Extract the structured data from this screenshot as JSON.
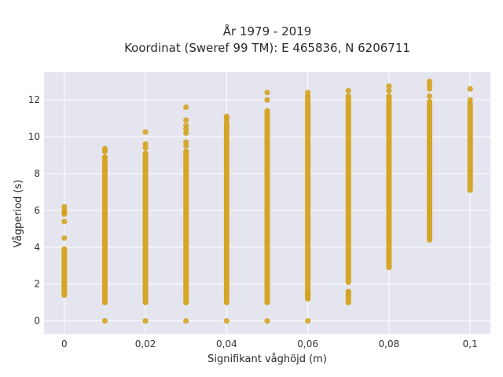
{
  "chart_data": {
    "type": "scatter",
    "title_line1": "År 1979 - 2019",
    "title_line2": "Koordinat (Sweref 99 TM): E 465836, N 6206711",
    "xlabel": "Signifikant våghöjd (m)",
    "ylabel": "Vågperiod (s)",
    "xlim": [
      -0.005,
      0.105
    ],
    "ylim": [
      -0.7,
      13.5
    ],
    "x_ticks": [
      {
        "value": 0,
        "label": "0"
      },
      {
        "value": 0.02,
        "label": "0,02"
      },
      {
        "value": 0.04,
        "label": "0,04"
      },
      {
        "value": 0.06,
        "label": "0,06"
      },
      {
        "value": 0.08,
        "label": "0,08"
      },
      {
        "value": 0.1,
        "label": "0,1"
      }
    ],
    "y_ticks": [
      {
        "value": 0,
        "label": "0"
      },
      {
        "value": 2,
        "label": "2"
      },
      {
        "value": 4,
        "label": "4"
      },
      {
        "value": 6,
        "label": "6"
      },
      {
        "value": 8,
        "label": "8"
      },
      {
        "value": 10,
        "label": "10"
      },
      {
        "value": 12,
        "label": "12"
      }
    ],
    "grid": true,
    "marker_color": "#D4A017",
    "background_color": "#E5E5EF",
    "series": [
      {
        "x": 0,
        "segments": [
          [
            1.4,
            3.9
          ]
        ],
        "points": [
          4.5,
          5.4,
          5.8,
          5.9,
          6.0,
          6.2
        ]
      },
      {
        "x": 0.01,
        "segments": [
          [
            1.0,
            8.9
          ]
        ],
        "points": [
          0.0,
          9.2,
          9.35
        ]
      },
      {
        "x": 0.02,
        "segments": [
          [
            1.0,
            9.1
          ]
        ],
        "points": [
          0.0,
          9.4,
          9.6,
          10.25
        ]
      },
      {
        "x": 0.03,
        "segments": [
          [
            1.0,
            9.2
          ]
        ],
        "points": [
          0.0,
          9.5,
          9.7,
          10.2,
          10.4,
          10.6,
          10.9,
          11.6
        ]
      },
      {
        "x": 0.04,
        "segments": [
          [
            1.0,
            10.8
          ]
        ],
        "points": [
          0.0,
          11.0,
          11.1
        ]
      },
      {
        "x": 0.05,
        "segments": [
          [
            1.0,
            11.4
          ]
        ],
        "points": [
          0.0,
          12.0,
          12.4
        ]
      },
      {
        "x": 0.06,
        "segments": [
          [
            1.2,
            12.2
          ]
        ],
        "points": [
          0.0,
          1.5,
          12.4
        ]
      },
      {
        "x": 0.07,
        "segments": [
          [
            2.1,
            12.2
          ],
          [
            1.0,
            1.6
          ]
        ],
        "points": [
          12.5
        ]
      },
      {
        "x": 0.08,
        "segments": [
          [
            2.9,
            12.2
          ]
        ],
        "points": [
          12.5,
          12.75
        ]
      },
      {
        "x": 0.09,
        "segments": [
          [
            4.4,
            11.9
          ]
        ],
        "points": [
          12.2,
          12.6,
          12.8,
          13.0
        ]
      },
      {
        "x": 0.1,
        "segments": [
          [
            7.1,
            11.8
          ]
        ],
        "points": [
          12.0,
          12.6
        ]
      }
    ]
  }
}
